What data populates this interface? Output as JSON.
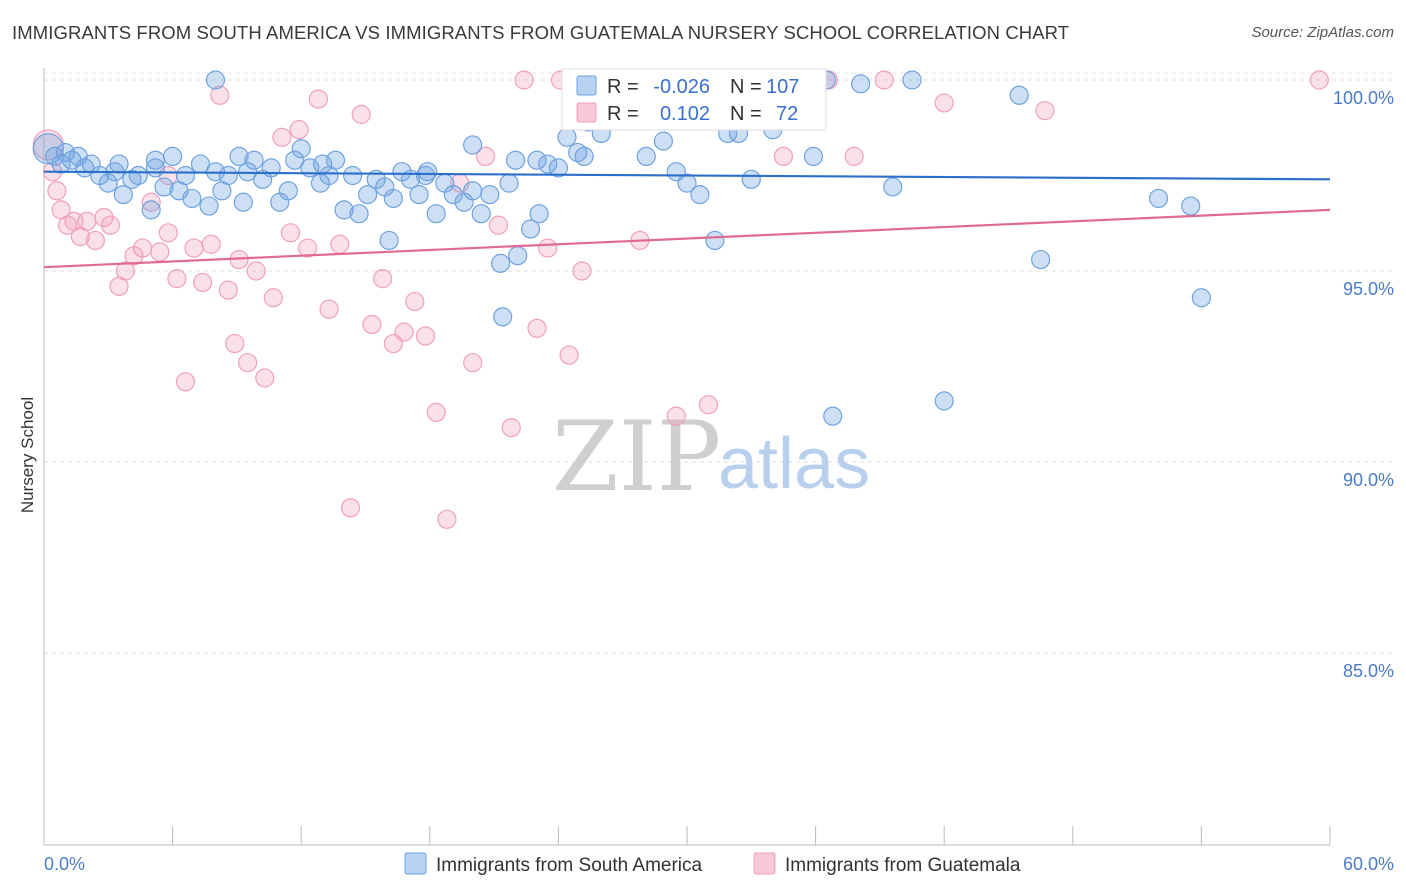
{
  "title": "IMMIGRANTS FROM SOUTH AMERICA VS IMMIGRANTS FROM GUATEMALA NURSERY SCHOOL CORRELATION CHART",
  "source": "Source: ZipAtlas.com",
  "watermark": {
    "zip": "ZIP",
    "atlas": "atlas"
  },
  "chart_data": {
    "type": "scatter",
    "ylabel": "Nursery School",
    "xlim": [
      0,
      60
    ],
    "ylim": [
      80.3,
      101.0
    ],
    "y_ticks": [
      {
        "value": 100,
        "label": "100.0%"
      },
      {
        "value": 95,
        "label": "95.0%"
      },
      {
        "value": 90,
        "label": "90.0%"
      },
      {
        "value": 85,
        "label": "85.0%"
      }
    ],
    "x_tick_labels": {
      "left": "0.0%",
      "right": "60.0%"
    },
    "grid": "horizontal dashed",
    "legend_position": "top-center",
    "series": [
      {
        "name": "Immigrants from South America",
        "color": "#6fa3e0",
        "line_color": "#2c6fcb",
        "R": "-0.026",
        "N": "107",
        "R_label": "R =",
        "N_label": "N =",
        "trend": {
          "x": [
            0,
            60
          ],
          "y": [
            97.6,
            97.4
          ]
        },
        "x": [
          0.2,
          0.5,
          0.8,
          1.0,
          1.3,
          1.6,
          1.9,
          2.2,
          2.6,
          3.0,
          3.3,
          3.7,
          4.1,
          4.4,
          5.0,
          5.2,
          5.6,
          6.0,
          6.3,
          6.6,
          6.9,
          7.3,
          7.7,
          8.0,
          8.3,
          8.6,
          9.1,
          9.5,
          9.8,
          10.2,
          10.6,
          11.0,
          11.4,
          11.7,
          12.0,
          12.4,
          12.9,
          13.3,
          13.6,
          14.0,
          14.4,
          14.7,
          15.1,
          15.5,
          15.9,
          16.3,
          16.7,
          17.1,
          17.5,
          17.9,
          18.3,
          18.7,
          19.1,
          19.6,
          20.0,
          20.4,
          20.8,
          21.3,
          21.7,
          22.1,
          22.7,
          23.1,
          23.5,
          24.0,
          24.4,
          24.9,
          25.4,
          26.0,
          26.7,
          27.3,
          27.9,
          28.5,
          28.9,
          29.5,
          30.0,
          30.6,
          31.3,
          31.9,
          32.4,
          33.0,
          34.0,
          35.0,
          36.5,
          38.1,
          40.5,
          45.5,
          46.5,
          52.0,
          53.5,
          54.0,
          3.5,
          5.2,
          9.3,
          16.1,
          21.4,
          17.8,
          23.0,
          25.2,
          28.1,
          35.9,
          39.6,
          36.8,
          42.0,
          20.0,
          13.0,
          8.0,
          22.0
        ],
        "y": [
          98.2,
          98.0,
          97.8,
          98.1,
          97.9,
          98.0,
          97.7,
          97.8,
          97.5,
          97.3,
          97.6,
          97.0,
          97.4,
          97.5,
          96.6,
          97.7,
          97.2,
          98.0,
          97.1,
          97.5,
          96.9,
          97.8,
          96.7,
          97.6,
          97.1,
          97.5,
          98.0,
          97.6,
          97.9,
          97.4,
          97.7,
          96.8,
          97.1,
          97.9,
          98.2,
          97.7,
          97.3,
          97.5,
          97.9,
          96.6,
          97.5,
          96.5,
          97.0,
          97.4,
          97.2,
          96.9,
          97.6,
          97.4,
          97.0,
          97.6,
          96.5,
          97.3,
          97.0,
          96.8,
          97.1,
          96.5,
          97.0,
          95.2,
          97.3,
          95.4,
          96.1,
          96.5,
          97.8,
          97.7,
          98.5,
          98.1,
          98.9,
          98.6,
          99.8,
          99.6,
          99.3,
          99.0,
          98.4,
          97.6,
          97.3,
          97.0,
          95.8,
          98.6,
          98.6,
          97.4,
          98.7,
          99.2,
          100.0,
          99.9,
          100.0,
          99.6,
          95.3,
          96.9,
          96.7,
          94.3,
          97.8,
          97.9,
          96.8,
          95.8,
          93.8,
          97.5,
          97.9,
          98.0,
          98.0,
          98.0,
          97.2,
          91.2,
          91.6,
          98.3,
          97.8,
          100.0,
          97.9
        ]
      },
      {
        "name": "Immigrants from Guatemala",
        "color": "#f0a0ba",
        "line_color": "#e06a92",
        "R": "0.102",
        "N": "72",
        "R_label": "R =",
        "N_label": "N =",
        "trend": {
          "x": [
            0,
            60
          ],
          "y": [
            95.1,
            96.6
          ]
        },
        "x": [
          0.2,
          0.4,
          0.6,
          0.8,
          1.1,
          1.4,
          1.7,
          2.0,
          2.4,
          2.8,
          3.1,
          3.5,
          3.8,
          4.2,
          4.6,
          5.0,
          5.4,
          5.8,
          6.2,
          6.6,
          7.0,
          7.4,
          7.8,
          8.2,
          8.6,
          9.1,
          9.5,
          9.9,
          10.3,
          10.7,
          11.1,
          11.5,
          11.9,
          12.3,
          12.8,
          13.3,
          13.8,
          14.3,
          14.8,
          15.3,
          15.8,
          16.3,
          16.8,
          17.3,
          17.8,
          18.3,
          18.8,
          19.4,
          20.0,
          20.6,
          21.2,
          21.8,
          22.4,
          23.0,
          23.5,
          24.1,
          24.5,
          25.1,
          26.3,
          27.8,
          29.5,
          31.0,
          32.6,
          34.5,
          36.6,
          37.8,
          39.2,
          42.0,
          46.7,
          59.5,
          5.8,
          8.9
        ],
        "y": [
          98.3,
          97.6,
          97.1,
          96.6,
          96.2,
          96.3,
          95.9,
          96.3,
          95.8,
          96.4,
          96.2,
          94.6,
          95.0,
          95.4,
          95.6,
          96.8,
          95.5,
          96.0,
          94.8,
          92.1,
          95.6,
          94.7,
          95.7,
          99.6,
          94.5,
          95.3,
          92.6,
          95.0,
          92.2,
          94.3,
          98.5,
          96.0,
          98.7,
          95.6,
          99.5,
          94.0,
          95.7,
          88.8,
          99.1,
          93.6,
          94.8,
          93.1,
          93.4,
          94.2,
          93.3,
          91.3,
          88.5,
          97.3,
          92.6,
          98.0,
          96.2,
          90.9,
          100.0,
          93.5,
          95.6,
          100.0,
          92.8,
          95.0,
          99.1,
          95.8,
          91.2,
          91.5,
          100.0,
          98.0,
          100.0,
          98.0,
          100.0,
          99.4,
          99.2,
          100.0,
          97.5,
          93.1
        ]
      }
    ]
  }
}
